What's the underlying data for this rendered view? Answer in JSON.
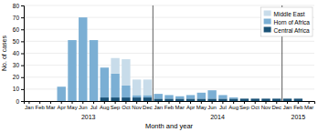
{
  "chart_data": {
    "type": "bar",
    "stacked": true,
    "categories": [
      "Jan",
      "Feb",
      "Mar",
      "Apr",
      "May",
      "Jun",
      "Jul",
      "Aug",
      "Sep",
      "Oct",
      "Nov",
      "Dec",
      "Jan",
      "Feb",
      "Mar",
      "Apr",
      "May",
      "Jun",
      "Jul",
      "Aug",
      "Sep",
      "Oct",
      "Nov",
      "Dec",
      "Jan",
      "Feb",
      "Mar"
    ],
    "series": [
      {
        "name": "Central Africa",
        "color": "#1a5276",
        "values": [
          0,
          0,
          0,
          0,
          0,
          0,
          0,
          3,
          3,
          3,
          3,
          3,
          2,
          2,
          2,
          2,
          2,
          2,
          2,
          2,
          2,
          2,
          2,
          2,
          2,
          2,
          0
        ]
      },
      {
        "name": "Horn of Africa",
        "color": "#7bafd4",
        "values": [
          0,
          0,
          0,
          12,
          51,
          70,
          51,
          25,
          20,
          10,
          2,
          2,
          4,
          3,
          2,
          3,
          5,
          7,
          3,
          1,
          0,
          0,
          0,
          0,
          0,
          0,
          0
        ]
      },
      {
        "name": "Middle East",
        "color": "#c8dcea",
        "values": [
          0,
          0,
          0,
          0,
          0,
          0,
          0,
          0,
          13,
          22,
          13,
          13,
          0,
          0,
          0,
          0,
          0,
          0,
          0,
          0,
          0,
          0,
          0,
          0,
          0,
          0,
          0
        ]
      }
    ],
    "x_label": "Month and year",
    "y_label": "No. of cases",
    "annotations": [
      "2013",
      "2014",
      "2015"
    ],
    "ylim": [
      0,
      80
    ],
    "yticks": [
      0,
      10,
      20,
      30,
      40,
      50,
      60,
      70,
      80
    ],
    "grid": true,
    "legend": "upper right"
  }
}
